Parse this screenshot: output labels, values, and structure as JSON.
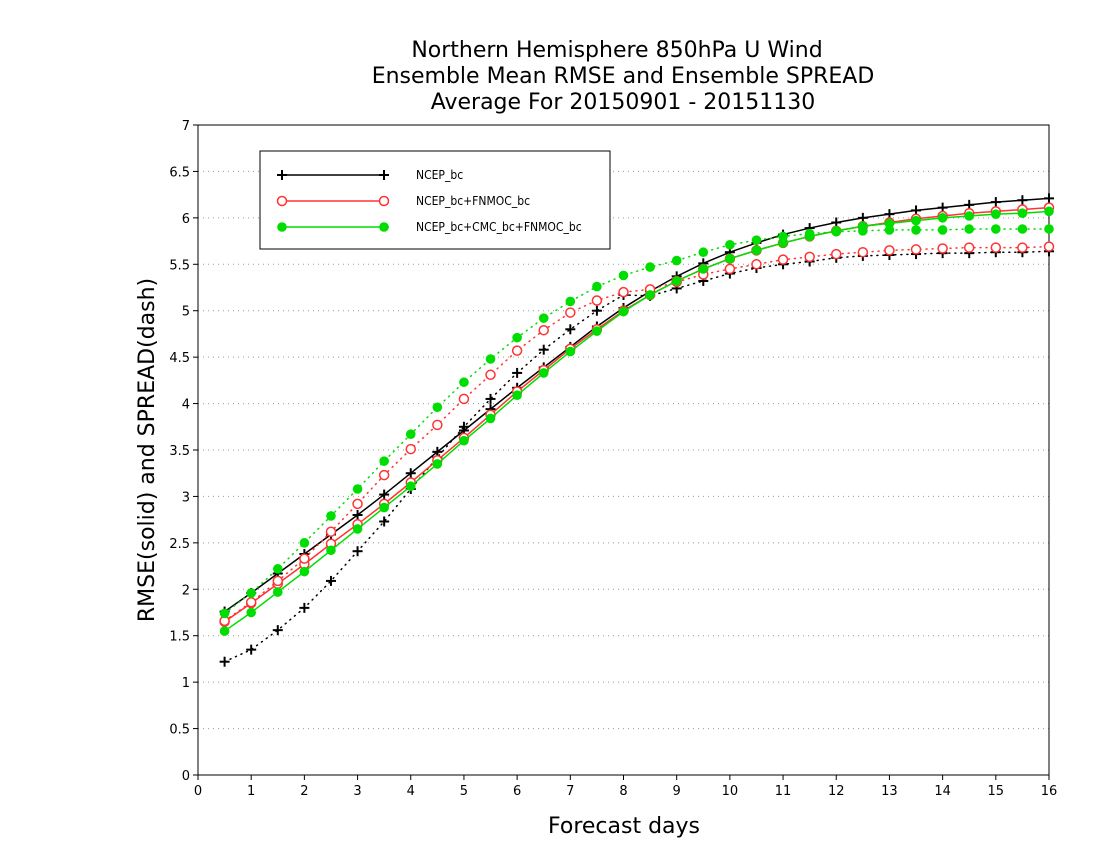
{
  "chart_data": {
    "type": "line",
    "title": [
      "Northern Hemisphere 850hPa U Wind",
      "Ensemble Mean RMSE and Ensemble SPREAD",
      "Average For 20150901 - 20151130"
    ],
    "xlabel": "Forecast days",
    "ylabel": "RMSE(solid) and SPREAD(dash)",
    "xlim": [
      0,
      16
    ],
    "ylim": [
      0,
      7
    ],
    "xticks": [
      "0",
      "1",
      "2",
      "3",
      "4",
      "5",
      "6",
      "7",
      "8",
      "9",
      "10",
      "11",
      "12",
      "13",
      "14",
      "15",
      "16"
    ],
    "yticks": [
      "0",
      "0.5",
      "1",
      "1.5",
      "2",
      "2.5",
      "3",
      "3.5",
      "4",
      "4.5",
      "5",
      "5.5",
      "6",
      "6.5",
      "7"
    ],
    "grid": "horizontal dotted",
    "legend_position": "top-left",
    "x": [
      0.5,
      1,
      1.5,
      2,
      2.5,
      3,
      3.5,
      4,
      4.5,
      5,
      5.5,
      6,
      6.5,
      7,
      7.5,
      8,
      8.5,
      9,
      9.5,
      10,
      10.5,
      11,
      11.5,
      12,
      12.5,
      13,
      13.5,
      14,
      14.5,
      15,
      15.5,
      16
    ],
    "series": [
      {
        "name": "NCEP_bc",
        "color": "#000000",
        "marker": "plus",
        "rmse": [
          1.76,
          1.96,
          2.17,
          2.38,
          2.59,
          2.8,
          3.02,
          3.25,
          3.48,
          3.71,
          3.94,
          4.17,
          4.39,
          4.61,
          4.83,
          5.03,
          5.21,
          5.37,
          5.51,
          5.63,
          5.73,
          5.82,
          5.89,
          5.95,
          6.0,
          6.04,
          6.08,
          6.11,
          6.14,
          6.17,
          6.19,
          6.21
        ],
        "spread": [
          1.22,
          1.35,
          1.56,
          1.8,
          2.09,
          2.41,
          2.73,
          3.08,
          3.42,
          3.75,
          4.05,
          4.33,
          4.58,
          4.8,
          5.0,
          5.17,
          5.16,
          5.24,
          5.32,
          5.4,
          5.46,
          5.5,
          5.53,
          5.57,
          5.59,
          5.6,
          5.61,
          5.62,
          5.62,
          5.63,
          5.63,
          5.64
        ]
      },
      {
        "name": "NCEP_bc+FNMOC_bc",
        "color": "#ff3333",
        "marker": "open-circle",
        "rmse": [
          1.65,
          1.85,
          2.06,
          2.27,
          2.49,
          2.7,
          2.92,
          3.15,
          3.39,
          3.63,
          3.88,
          4.13,
          4.36,
          4.59,
          4.8,
          5.0,
          5.17,
          5.32,
          5.45,
          5.56,
          5.65,
          5.73,
          5.8,
          5.86,
          5.91,
          5.95,
          5.99,
          6.02,
          6.05,
          6.07,
          6.09,
          6.11
        ],
        "spread": [
          1.66,
          1.86,
          2.09,
          2.33,
          2.62,
          2.92,
          3.23,
          3.51,
          3.77,
          4.05,
          4.31,
          4.57,
          4.79,
          4.98,
          5.11,
          5.2,
          5.23,
          5.31,
          5.39,
          5.45,
          5.5,
          5.55,
          5.58,
          5.61,
          5.63,
          5.65,
          5.66,
          5.67,
          5.68,
          5.68,
          5.68,
          5.69
        ]
      },
      {
        "name": "NCEP_bc+CMC_bc+FNMOC_bc",
        "color": "#00dd00",
        "marker": "filled-circle",
        "rmse": [
          1.55,
          1.75,
          1.97,
          2.19,
          2.42,
          2.65,
          2.88,
          3.11,
          3.35,
          3.6,
          3.84,
          4.09,
          4.33,
          4.56,
          4.78,
          4.99,
          5.17,
          5.32,
          5.45,
          5.56,
          5.65,
          5.73,
          5.8,
          5.86,
          5.91,
          5.94,
          5.97,
          6.0,
          6.02,
          6.04,
          6.05,
          6.07
        ],
        "spread": [
          1.74,
          1.96,
          2.22,
          2.5,
          2.79,
          3.08,
          3.38,
          3.67,
          3.96,
          4.23,
          4.48,
          4.71,
          4.92,
          5.1,
          5.26,
          5.38,
          5.47,
          5.54,
          5.63,
          5.71,
          5.76,
          5.8,
          5.83,
          5.85,
          5.86,
          5.87,
          5.87,
          5.87,
          5.88,
          5.88,
          5.88,
          5.88
        ]
      }
    ]
  }
}
